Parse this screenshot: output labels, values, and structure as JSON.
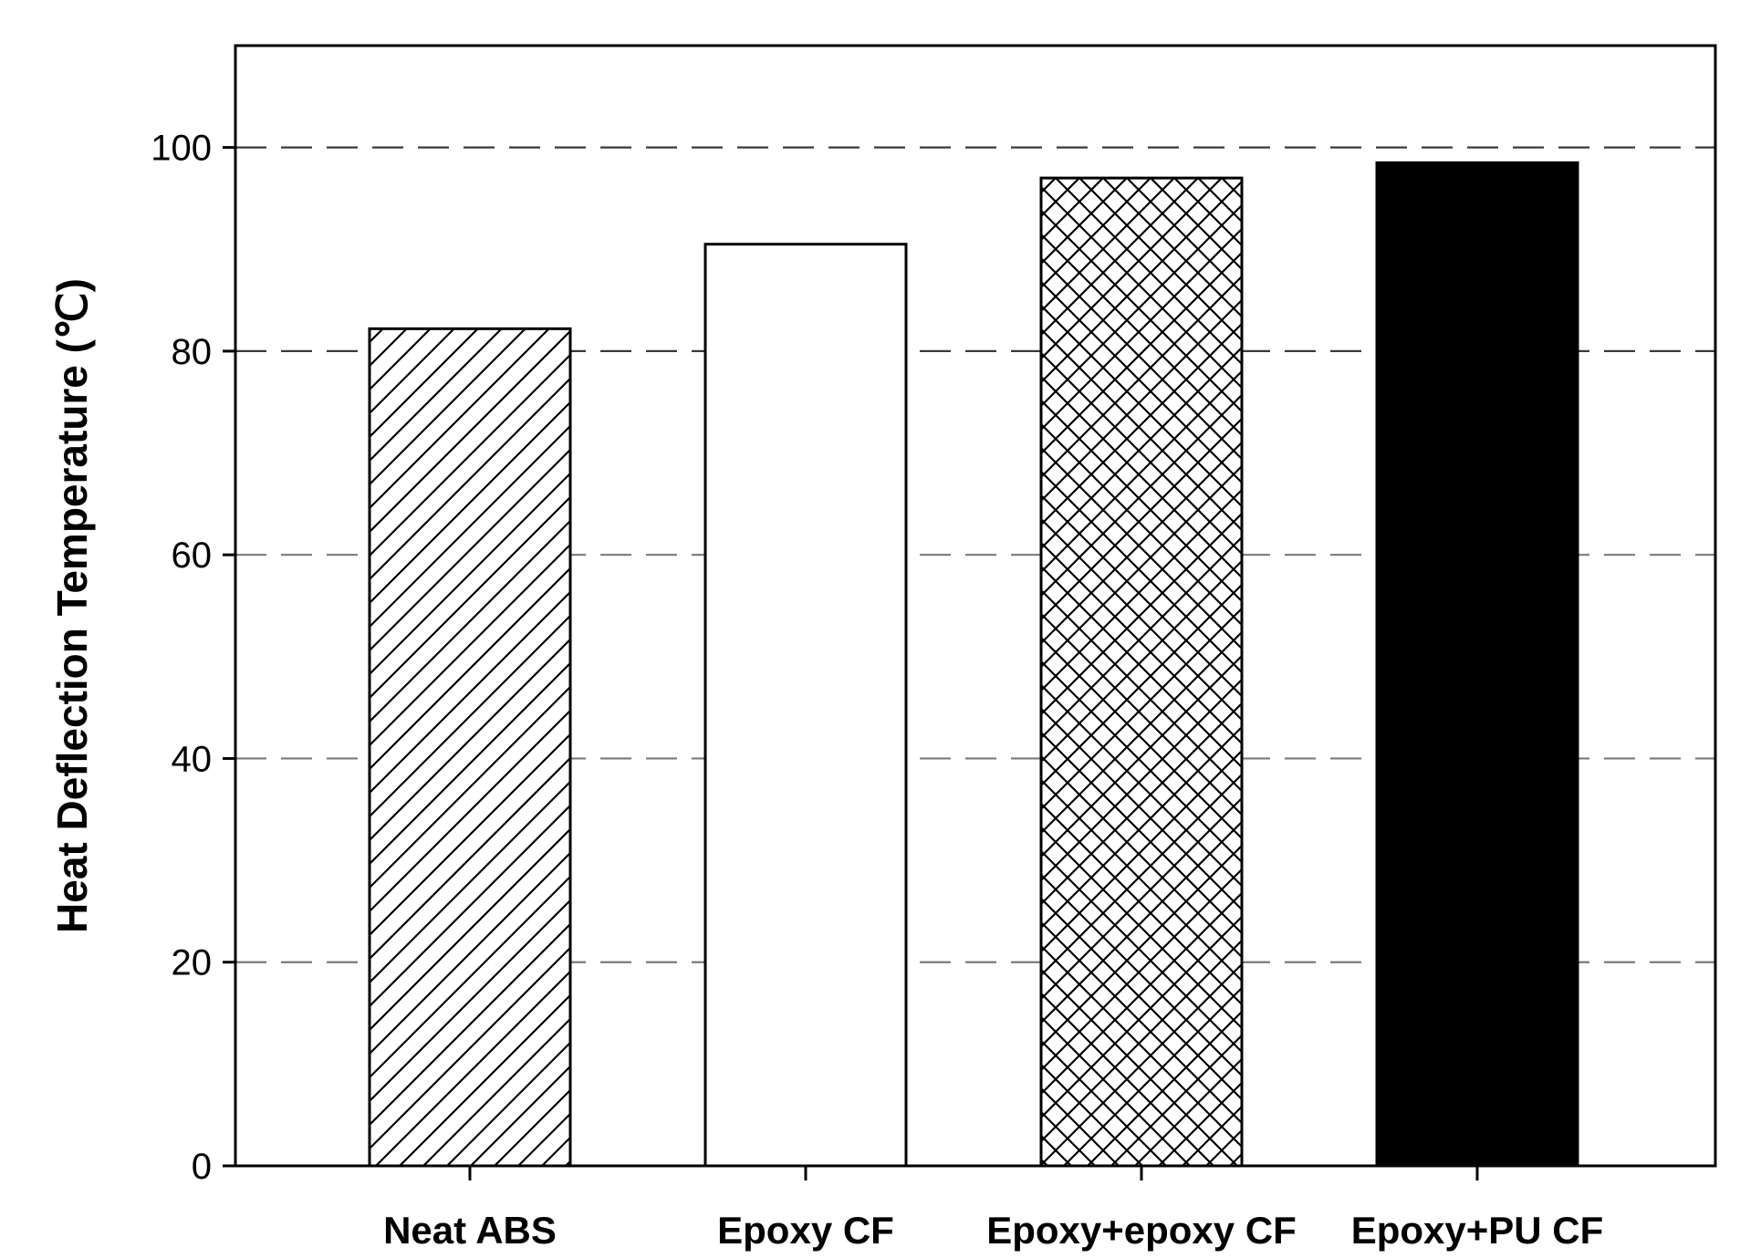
{
  "chart_data": {
    "type": "bar",
    "title": "",
    "xlabel": "",
    "ylabel": "Heat Deflection Temperature (℃)",
    "ylim": [
      0,
      110
    ],
    "yticks": [
      0,
      20,
      40,
      60,
      80,
      100
    ],
    "grid": "horizontal dashed",
    "categories": [
      "Neat ABS",
      "Epoxy CF",
      "Epoxy+epoxy CF",
      "Epoxy+PU CF"
    ],
    "values": [
      82.2,
      90.5,
      97.0,
      98.5
    ],
    "fills": [
      "diagonal-hatch",
      "white",
      "cross-hatch",
      "black"
    ]
  }
}
